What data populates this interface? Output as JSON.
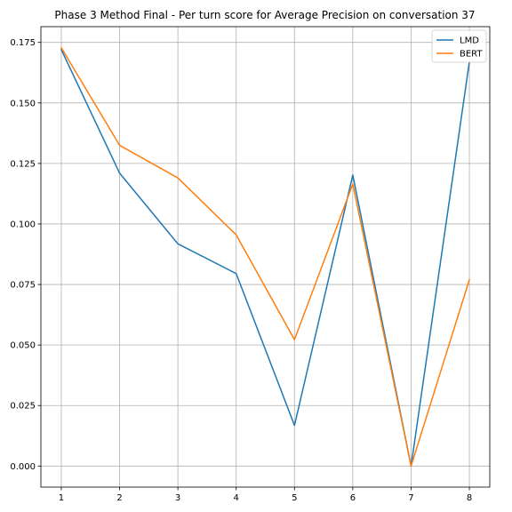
{
  "chart_data": {
    "type": "line",
    "title": "Phase 3 Method Final - Per turn score for Average Precision on conversation 37",
    "xlabel": "",
    "ylabel": "",
    "x": [
      1,
      2,
      3,
      4,
      5,
      6,
      7,
      8
    ],
    "xlim": [
      0.65,
      8.35
    ],
    "ylim": [
      -0.0087,
      0.1815
    ],
    "x_ticks": [
      1,
      2,
      3,
      4,
      5,
      6,
      7,
      8
    ],
    "y_ticks": [
      0.0,
      0.025,
      0.05,
      0.075,
      0.1,
      0.125,
      0.15,
      0.175
    ],
    "y_tick_labels": [
      "0.000",
      "0.025",
      "0.050",
      "0.075",
      "0.100",
      "0.125",
      "0.150",
      "0.175"
    ],
    "grid": true,
    "legend_position": "top-right",
    "series": [
      {
        "name": "LMD",
        "color": "#1f77b4",
        "values": [
          0.172,
          0.121,
          0.0918,
          0.0795,
          0.0168,
          0.1202,
          0.0,
          0.167
        ]
      },
      {
        "name": "BERT",
        "color": "#ff7f0e",
        "values": [
          0.1728,
          0.1325,
          0.119,
          0.0955,
          0.0522,
          0.1165,
          0.0,
          0.077
        ]
      }
    ]
  }
}
